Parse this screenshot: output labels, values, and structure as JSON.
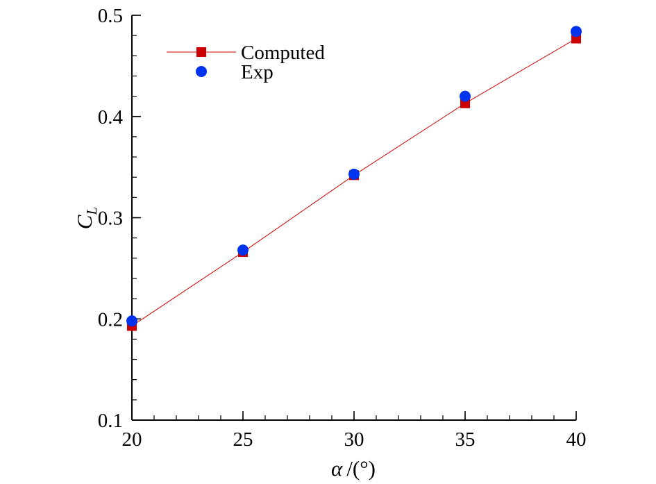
{
  "chart_data": {
    "type": "line",
    "title": "",
    "xlabel": {
      "symbol": "α",
      "unit": "/(°)"
    },
    "ylabel": {
      "symbol": "C",
      "subscript": "L"
    },
    "xlim": [
      20,
      40
    ],
    "ylim": [
      0.1,
      0.5
    ],
    "x_ticks": [
      "20",
      "25",
      "30",
      "35",
      "40"
    ],
    "y_ticks": [
      "0.1",
      "0.2",
      "0.3",
      "0.4",
      "0.5"
    ],
    "grid": false,
    "legend_position": "top-left",
    "series": [
      {
        "name": "Computed",
        "marker": "square",
        "line": true,
        "color": "#cc0000",
        "x": [
          20,
          25,
          30,
          35,
          40
        ],
        "y": [
          0.193,
          0.266,
          0.342,
          0.413,
          0.477
        ]
      },
      {
        "name": "Exp",
        "marker": "circle",
        "line": false,
        "color": "#0033ee",
        "x": [
          20,
          25,
          30,
          35,
          40
        ],
        "y": [
          0.198,
          0.268,
          0.343,
          0.42,
          0.484
        ]
      }
    ]
  }
}
